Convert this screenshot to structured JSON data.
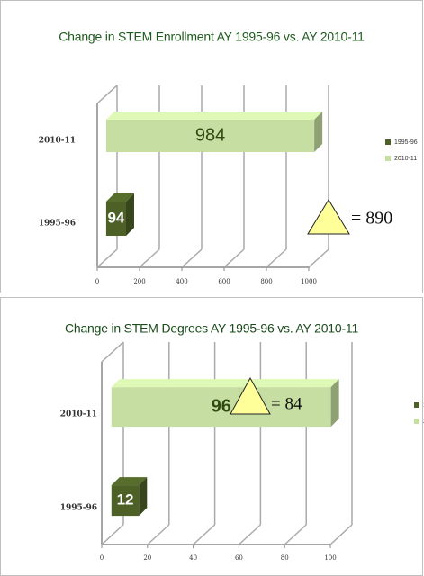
{
  "chart_data": [
    {
      "type": "bar3d_h",
      "title": "Change in STEM Enrollment AY 1995-96 vs. AY 2010-11",
      "categories": [
        "2010-11",
        "1995-96"
      ],
      "series": [
        {
          "name": "1995-96",
          "color": "#4d6126",
          "values": [
            null,
            94
          ]
        },
        {
          "name": "2010-11",
          "color": "#c6dea2",
          "values": [
            984,
            null
          ]
        }
      ],
      "xlim": [
        0,
        1000
      ],
      "xticks": [
        0,
        200,
        400,
        600,
        800,
        1000
      ],
      "grid": true,
      "annotation": "= 890"
    },
    {
      "type": "bar3d_h",
      "title": "Change in STEM Degrees AY 1995-96 vs. AY 2010-11",
      "categories": [
        "2010-11",
        "1995-96"
      ],
      "series": [
        {
          "name": "1995-96",
          "color": "#4d6126",
          "values": [
            null,
            12
          ]
        },
        {
          "name": "2010-11",
          "color": "#c6dea2",
          "values": [
            96,
            null
          ]
        }
      ],
      "xlim": [
        0,
        100
      ],
      "xticks": [
        0,
        20,
        40,
        60,
        80,
        100
      ],
      "grid": true,
      "annotation": "= 84"
    }
  ]
}
